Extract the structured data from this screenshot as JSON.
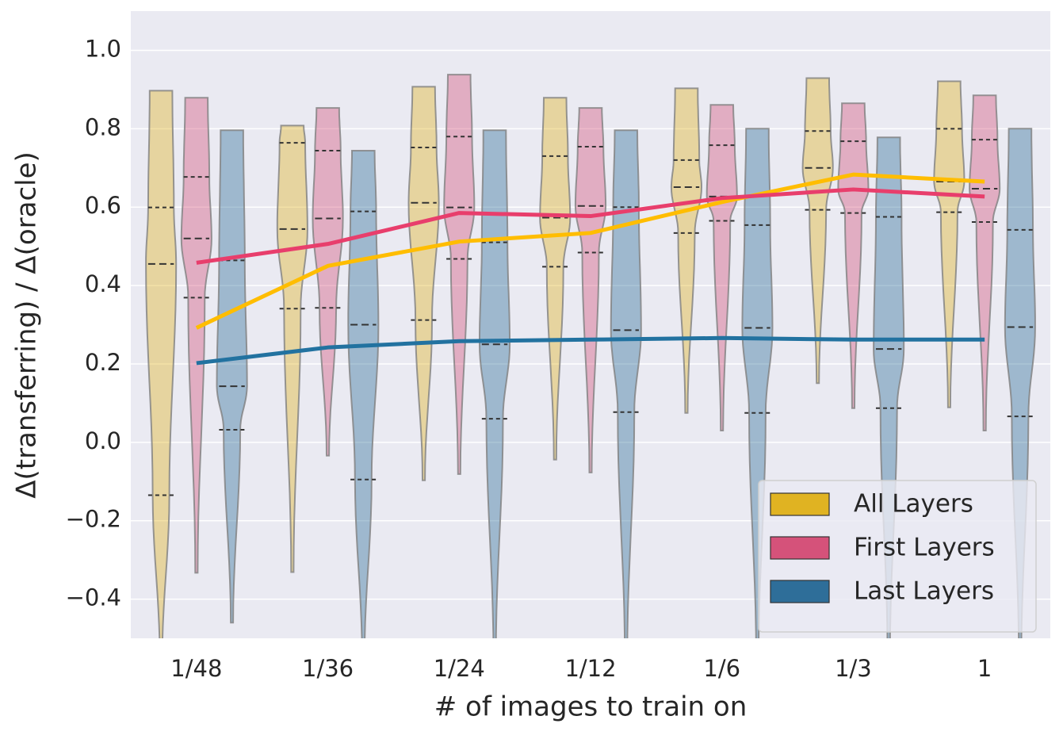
{
  "chart_data": {
    "type": "violin",
    "x_label": "# of images to train on",
    "y_label": "Δ(transferring)  /  Δ(oracle)",
    "categories": [
      "1/48",
      "1/36",
      "1/24",
      "1/12",
      "1/6",
      "1/3",
      "1"
    ],
    "ylim": [
      -0.5,
      1.1
    ],
    "yticks": [
      {
        "value": -0.4,
        "label": "−0.4"
      },
      {
        "value": -0.2,
        "label": "−0.2"
      },
      {
        "value": 0,
        "label": "0.0"
      },
      0.2,
      0.4,
      0.6,
      0.8,
      {
        "value": 1,
        "label": "1.0"
      }
    ],
    "grid": true,
    "legend": "lower right",
    "series": [
      {
        "name": "All Layers",
        "color": "#e0b322",
        "line_color": "#ffbd00",
        "min": [
          -0.55,
          -0.331,
          -0.097,
          -0.044,
          0.075,
          0.151,
          0.089
        ],
        "q1": [
          -0.135,
          0.341,
          0.312,
          0.448,
          0.534,
          0.593,
          0.587
        ],
        "median": [
          0.455,
          0.544,
          0.611,
          0.573,
          0.651,
          0.7,
          0.665
        ],
        "q3": [
          0.599,
          0.764,
          0.752,
          0.73,
          0.72,
          0.794,
          0.8
        ],
        "max": [
          0.897,
          0.808,
          0.907,
          0.879,
          0.903,
          0.929,
          0.921
        ],
        "mean": [
          0.292,
          0.45,
          0.512,
          0.534,
          0.613,
          0.683,
          0.665
        ]
      },
      {
        "name": "First Layers",
        "color": "#d5527a",
        "line_color": "#e83e6c",
        "min": [
          -0.333,
          -0.034,
          -0.081,
          -0.077,
          0.03,
          0.087,
          0.03
        ],
        "q1": [
          0.369,
          0.343,
          0.468,
          0.484,
          0.565,
          0.585,
          0.562
        ],
        "median": [
          0.52,
          0.571,
          0.599,
          0.603,
          0.627,
          0.645,
          0.647
        ],
        "q3": [
          0.677,
          0.744,
          0.78,
          0.754,
          0.758,
          0.768,
          0.772
        ],
        "max": [
          0.879,
          0.853,
          0.938,
          0.853,
          0.861,
          0.865,
          0.885
        ],
        "mean": [
          0.458,
          0.506,
          0.585,
          0.577,
          0.623,
          0.645,
          0.627
        ]
      },
      {
        "name": "Last Layers",
        "color": "#2e6e99",
        "line_color": "#2272a0",
        "min": [
          -0.46,
          -0.55,
          -0.55,
          -0.55,
          -0.55,
          -0.55,
          -0.55
        ],
        "q1": [
          0.032,
          -0.095,
          0.06,
          0.077,
          0.075,
          0.087,
          0.066
        ],
        "median": [
          0.143,
          0.3,
          0.25,
          0.286,
          0.292,
          0.238,
          0.294
        ],
        "q3": [
          0.464,
          0.589,
          0.51,
          0.6,
          0.554,
          0.575,
          0.542
        ],
        "max": [
          0.796,
          0.744,
          0.796,
          0.796,
          0.8,
          0.778,
          0.8
        ],
        "mean": [
          0.202,
          0.242,
          0.258,
          0.262,
          0.266,
          0.262,
          0.262
        ]
      }
    ]
  }
}
